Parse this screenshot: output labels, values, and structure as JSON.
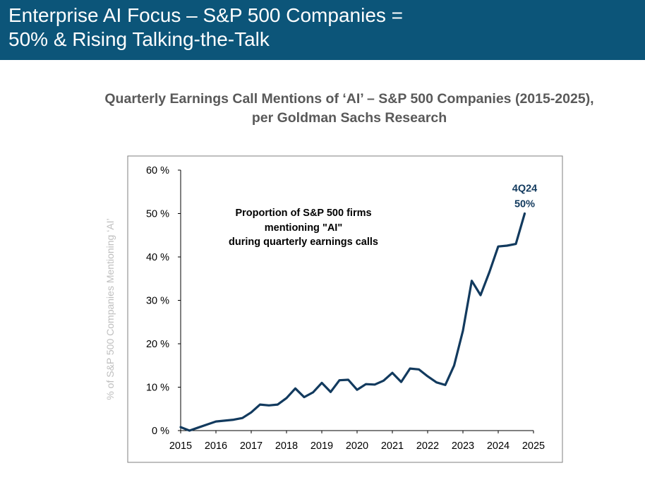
{
  "slide": {
    "title": "Enterprise AI Focus – S&P 500 Companies =\n50% & Rising Talking-the-Talk",
    "header_color": "#0c5579"
  },
  "chart_data": {
    "type": "line",
    "title": "Quarterly Earnings Call Mentions of ‘AI’ – S&P 500 Companies (2015-2025),\nper Goldman Sachs Research",
    "ylabel": "% of S&P 500 Companies Mentioning ‘AI’",
    "xlabel": "",
    "xlim": [
      2015,
      2025
    ],
    "ylim": [
      0,
      60
    ],
    "x_ticks": [
      "2015",
      "2016",
      "2017",
      "2018",
      "2019",
      "2020",
      "2021",
      "2022",
      "2023",
      "2024",
      "2025"
    ],
    "y_ticks": [
      "0 %",
      "10 %",
      "20 %",
      "30 %",
      "40 %",
      "50 %",
      "60 %"
    ],
    "grid": false,
    "legend": "none",
    "series": [
      {
        "name": "",
        "color": "#123a5e",
        "x": [
          2015.0,
          2015.25,
          2015.5,
          2015.75,
          2016.0,
          2016.25,
          2016.5,
          2016.75,
          2017.0,
          2017.25,
          2017.5,
          2017.75,
          2018.0,
          2018.25,
          2018.5,
          2018.75,
          2019.0,
          2019.25,
          2019.5,
          2019.75,
          2020.0,
          2020.25,
          2020.5,
          2020.75,
          2021.0,
          2021.25,
          2021.5,
          2021.75,
          2022.0,
          2022.25,
          2022.5,
          2022.75,
          2023.0,
          2023.25,
          2023.5,
          2023.75,
          2024.0,
          2024.25,
          2024.5,
          2024.75
        ],
        "values": [
          0.8,
          0.0,
          0.7,
          1.4,
          2.1,
          2.3,
          2.5,
          2.9,
          4.2,
          6.0,
          5.8,
          6.0,
          7.5,
          9.7,
          7.7,
          8.8,
          11.0,
          8.9,
          11.6,
          11.7,
          9.4,
          10.7,
          10.6,
          11.5,
          13.3,
          11.2,
          14.3,
          14.1,
          12.5,
          11.1,
          10.5,
          15.0,
          23.0,
          34.5,
          31.2,
          36.5,
          42.4,
          42.6,
          43.0,
          50.0
        ]
      }
    ],
    "annotations": [
      "Proportion of S&P 500 firms",
      "mentioning \"AI\"",
      "during quarterly earnings calls"
    ],
    "end_label": [
      "4Q24",
      "50%"
    ]
  }
}
